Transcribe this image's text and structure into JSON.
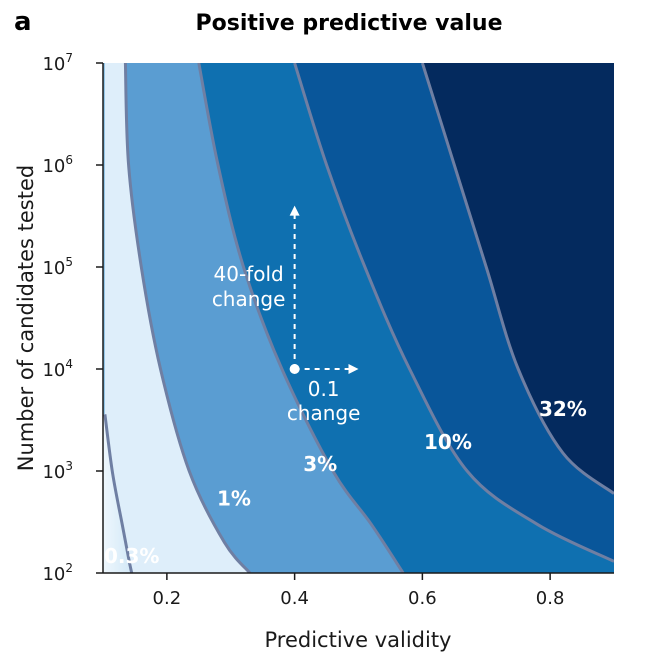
{
  "panel_label": "a",
  "chart_data": {
    "type": "heatmap",
    "title": "Positive predictive value",
    "xlabel": "Predictive validity",
    "ylabel": "Number of candidates tested",
    "xlim": [
      0.1,
      0.9
    ],
    "ylim": [
      100,
      10000000
    ],
    "y_scale": "log",
    "x_ticks": [
      "0.2",
      "0.4",
      "0.6",
      "0.8"
    ],
    "x_tick_values": [
      0.2,
      0.4,
      0.6,
      0.8
    ],
    "y_ticks": [
      {
        "value": 100,
        "base": "10",
        "exp": "2"
      },
      {
        "value": 1000,
        "base": "10",
        "exp": "3"
      },
      {
        "value": 10000,
        "base": "10",
        "exp": "4"
      },
      {
        "value": 100000,
        "base": "10",
        "exp": "5"
      },
      {
        "value": 1000000,
        "base": "10",
        "exp": "6"
      },
      {
        "value": 10000000,
        "base": "10",
        "exp": "7"
      }
    ],
    "contours": [
      {
        "level": "0.3%",
        "points": [
          [
            0.103,
            3600
          ],
          [
            0.115,
            950
          ],
          [
            0.13,
            300
          ],
          [
            0.14,
            140
          ],
          [
            0.145,
            100
          ]
        ]
      },
      {
        "level": "1%",
        "points": [
          [
            0.135,
            10000000
          ],
          [
            0.14,
            1000000
          ],
          [
            0.16,
            100000
          ],
          [
            0.19,
            10000
          ],
          [
            0.235,
            1000
          ],
          [
            0.29,
            200
          ],
          [
            0.33,
            100
          ]
        ]
      },
      {
        "level": "3%",
        "points": [
          [
            0.25,
            10000000
          ],
          [
            0.28,
            1000000
          ],
          [
            0.32,
            100000
          ],
          [
            0.38,
            10000
          ],
          [
            0.46,
            1000
          ],
          [
            0.52,
            300
          ],
          [
            0.57,
            100
          ]
        ]
      },
      {
        "level": "10%",
        "points": [
          [
            0.4,
            10000000
          ],
          [
            0.45,
            1000000
          ],
          [
            0.51,
            100000
          ],
          [
            0.58,
            10000
          ],
          [
            0.67,
            1000
          ],
          [
            0.78,
            300
          ],
          [
            0.9,
            130
          ]
        ]
      },
      {
        "level": "32%",
        "points": [
          [
            0.6,
            10000000
          ],
          [
            0.65,
            1000000
          ],
          [
            0.7,
            100000
          ],
          [
            0.75,
            10000
          ],
          [
            0.82,
            1500
          ],
          [
            0.9,
            600
          ]
        ]
      }
    ],
    "band_colors": [
      "#deeefa",
      "#8dc2e6",
      "#5a9dd2",
      "#0f70b0",
      "#09569a",
      "#042a5e"
    ],
    "contour_color": "#6f7fa3",
    "region_labels": [
      {
        "text": "0.3%",
        "x": 0.145,
        "y": 125
      },
      {
        "text": "1%",
        "x": 0.305,
        "y": 460
      },
      {
        "text": "3%",
        "x": 0.44,
        "y": 1000
      },
      {
        "text": "10%",
        "x": 0.64,
        "y": 1650
      },
      {
        "text": "32%",
        "x": 0.82,
        "y": 3450
      }
    ],
    "annotations": {
      "start_point": {
        "x": 0.4,
        "y": 10000
      },
      "vertical_arrow_to": {
        "x": 0.4,
        "y": 400000
      },
      "horizontal_arrow_to": {
        "x": 0.5,
        "y": 10000
      },
      "vertical_label": [
        "40-fold",
        "change"
      ],
      "horizontal_label": [
        "0.1",
        "change"
      ]
    }
  }
}
